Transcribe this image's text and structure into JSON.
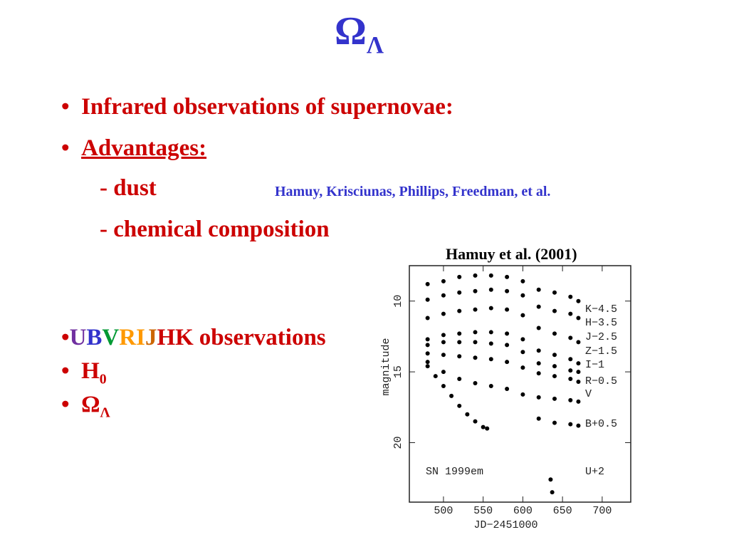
{
  "slide": {
    "title": {
      "symbol": "Ω",
      "subscript": "Λ"
    },
    "bullets": [
      "Infrared observations of supernovae:",
      "Advantages:"
    ],
    "sub_items": [
      "- dust",
      "- chemical composition"
    ],
    "reference": "Hamuy, Krisciunas, Phillips, Freedman, et al.",
    "figure_caption": "Hamuy et al. (2001)",
    "bands": [
      {
        "text": "U",
        "color": "#7030a0"
      },
      {
        "text": "B",
        "color": "#3333cc"
      },
      {
        "text": "V",
        "color": "#009933"
      },
      {
        "text": "R",
        "color": "#ff9900"
      },
      {
        "text": "I",
        "color": "#ff9900"
      },
      {
        "text": "J",
        "color": "#cc6600"
      },
      {
        "text": "HK",
        "color": "#cc0000"
      }
    ],
    "bands_suffix": "observations",
    "hubble": {
      "symbol": "H",
      "subscript": "0"
    },
    "omega": {
      "symbol": "Ω",
      "subscript": "Λ"
    }
  },
  "chart_data": {
    "type": "scatter",
    "x_label": "JD−2451000",
    "y_label": "magnitude",
    "annotation": "SN 1999em",
    "xlim": [
      457,
      736
    ],
    "ylim": [
      24.2,
      7.5
    ],
    "xticks": [
      500,
      550,
      600,
      650,
      700
    ],
    "yticks": [
      10,
      15,
      20
    ],
    "color": "#000000",
    "series": [
      {
        "name": "K−4.5",
        "x": [
          480,
          500,
          520,
          540,
          560,
          580,
          600,
          620,
          640,
          660,
          670
        ],
        "values": [
          8.8,
          8.6,
          8.3,
          8.2,
          8.2,
          8.3,
          8.6,
          9.2,
          9.4,
          9.7,
          10.0
        ]
      },
      {
        "name": "H−3.5",
        "x": [
          480,
          500,
          520,
          540,
          560,
          580,
          600,
          620,
          640,
          660,
          670
        ],
        "values": [
          9.9,
          9.6,
          9.4,
          9.3,
          9.2,
          9.3,
          9.6,
          10.4,
          10.7,
          10.9,
          11.2
        ]
      },
      {
        "name": "J−2.5",
        "x": [
          480,
          500,
          520,
          540,
          560,
          580,
          600,
          620,
          640,
          660,
          670
        ],
        "values": [
          11.2,
          10.9,
          10.7,
          10.6,
          10.5,
          10.6,
          11.0,
          11.9,
          12.3,
          12.6,
          12.9
        ]
      },
      {
        "name": "Z−1.5",
        "x": [
          480,
          500,
          520,
          540,
          560,
          580,
          600,
          620,
          640,
          660,
          670
        ],
        "values": [
          12.7,
          12.4,
          12.3,
          12.2,
          12.2,
          12.3,
          12.7,
          13.5,
          13.8,
          14.1,
          14.4
        ]
      },
      {
        "name": "I−1",
        "x": [
          480,
          500,
          520,
          540,
          560,
          580,
          600,
          620,
          640,
          660,
          670
        ],
        "values": [
          13.1,
          12.9,
          12.9,
          12.9,
          13.0,
          13.1,
          13.6,
          14.4,
          14.6,
          14.9,
          15.0
        ]
      },
      {
        "name": "R−0.5",
        "x": [
          480,
          500,
          520,
          540,
          560,
          580,
          600,
          620,
          640,
          660,
          670
        ],
        "values": [
          13.7,
          13.8,
          13.9,
          14.0,
          14.1,
          14.3,
          14.7,
          15.1,
          15.3,
          15.5,
          15.7
        ]
      },
      {
        "name": "V",
        "x": [
          480,
          500,
          520,
          540,
          560,
          580,
          600,
          620,
          640,
          660,
          670
        ],
        "values": [
          14.3,
          15.0,
          15.5,
          15.8,
          16.0,
          16.2,
          16.6,
          16.8,
          16.9,
          17.0,
          17.1
        ]
      },
      {
        "name": "B+0.5",
        "x": [
          480,
          490,
          500,
          510,
          520,
          530,
          540,
          550,
          555,
          620,
          640,
          660,
          670
        ],
        "values": [
          14.6,
          15.3,
          16.0,
          16.7,
          17.4,
          18.0,
          18.5,
          18.9,
          19.0,
          18.3,
          18.6,
          18.7,
          18.8
        ]
      },
      {
        "name": "U+2",
        "x": [
          635,
          637
        ],
        "values": [
          22.6,
          23.5
        ]
      }
    ]
  }
}
